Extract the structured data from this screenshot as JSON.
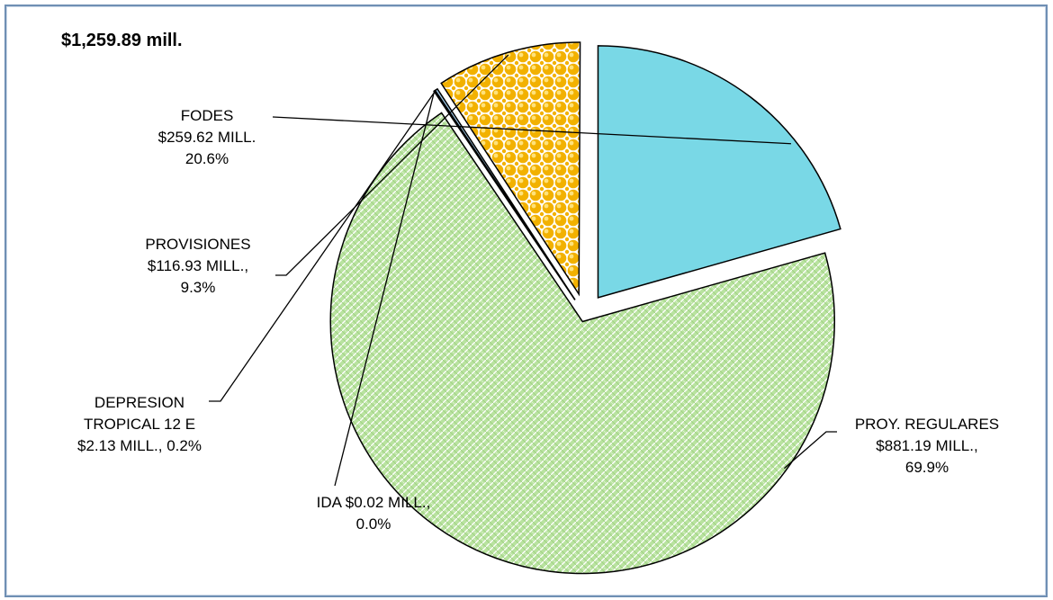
{
  "chart_data": {
    "type": "pie",
    "title": "$1,259.89  mill.",
    "categories": [
      "FODES",
      "PROY. REGULARES",
      "IDA",
      "DEPRESION TROPICAL 12 E",
      "PROVISIONES"
    ],
    "values": [
      259.62,
      881.19,
      0.02,
      2.13,
      116.93
    ],
    "percent": [
      20.6,
      69.9,
      0.0,
      0.2,
      9.3
    ],
    "unit": "MILL.",
    "colors": {
      "FODES": "#79d8e6",
      "PROY. REGULARES": "#b9e3a0",
      "IDA": "#ffffff",
      "DEPRESION TROPICAL 12 E": "#9fc9e8",
      "PROVISIONES": "#f5b800"
    },
    "labels": {
      "fodes": [
        "FODES",
        "$259.62 MILL.",
        "20.6%"
      ],
      "provisiones": [
        "PROVISIONES",
        "$116.93 MILL.,",
        "9.3%"
      ],
      "depresion": [
        "DEPRESION",
        "TROPICAL 12 E",
        "$2.13 MILL.,  0.2%"
      ],
      "ida": [
        "IDA $0.02 MILL.,",
        "0.0%"
      ],
      "proy": [
        "PROY. REGULARES",
        "$881.19 MILL.,",
        "69.9%"
      ]
    },
    "exploded": true,
    "legend": "none"
  }
}
